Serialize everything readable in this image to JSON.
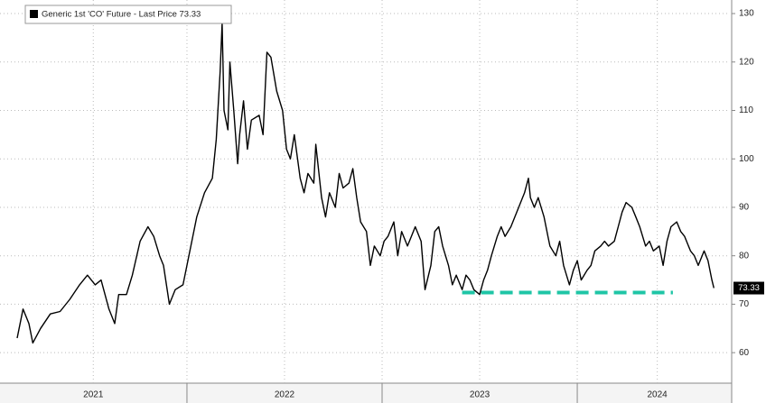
{
  "chart_data": {
    "type": "line",
    "x": [
      2021.13,
      2021.16,
      2021.19,
      2021.21,
      2021.25,
      2021.3,
      2021.35,
      2021.4,
      2021.45,
      2021.49,
      2021.53,
      2021.56,
      2021.6,
      2021.63,
      2021.65,
      2021.69,
      2021.72,
      2021.76,
      2021.8,
      2021.83,
      2021.86,
      2021.88,
      2021.91,
      2021.94,
      2021.98,
      2022.02,
      2022.05,
      2022.09,
      2022.13,
      2022.15,
      2022.17,
      2022.18,
      2022.19,
      2022.21,
      2022.22,
      2022.24,
      2022.26,
      2022.27,
      2022.29,
      2022.31,
      2022.33,
      2022.37,
      2022.39,
      2022.41,
      2022.43,
      2022.46,
      2022.49,
      2022.51,
      2022.53,
      2022.55,
      2022.58,
      2022.6,
      2022.62,
      2022.65,
      2022.66,
      2022.69,
      2022.71,
      2022.73,
      2022.76,
      2022.78,
      2022.8,
      2022.83,
      2022.85,
      2022.87,
      2022.89,
      2022.92,
      2022.94,
      2022.96,
      2022.99,
      2023.01,
      2023.03,
      2023.06,
      2023.08,
      2023.1,
      2023.13,
      2023.15,
      2023.17,
      2023.2,
      2023.22,
      2023.25,
      2023.27,
      2023.29,
      2023.31,
      2023.34,
      2023.36,
      2023.38,
      2023.41,
      2023.43,
      2023.45,
      2023.47,
      2023.5,
      2023.52,
      2023.54,
      2023.56,
      2023.59,
      2023.61,
      2023.63,
      2023.66,
      2023.68,
      2023.7,
      2023.73,
      2023.75,
      2023.76,
      2023.78,
      2023.8,
      2023.83,
      2023.85,
      2023.86,
      2023.89,
      2023.91,
      2023.93,
      2023.96,
      2023.98,
      2024.0,
      2024.02,
      2024.05,
      2024.07,
      2024.09,
      2024.12,
      2024.14,
      2024.16,
      2024.19,
      2024.21,
      2024.23,
      2024.25,
      2024.28,
      2024.3,
      2024.32,
      2024.35,
      2024.37,
      2024.39,
      2024.42,
      2024.44,
      2024.46,
      2024.48,
      2024.51,
      2024.53,
      2024.55,
      2024.58,
      2024.6,
      2024.62,
      2024.65,
      2024.67,
      2024.69,
      2024.7
    ],
    "series": [
      {
        "name": "Generic 1st 'CO' Future - Last Price 73.33",
        "color": "#000000",
        "values": [
          63,
          69,
          66,
          62,
          65,
          68,
          68.5,
          71,
          74,
          76,
          74,
          75,
          69,
          66,
          72,
          72,
          76,
          83,
          86,
          84,
          80,
          78,
          70,
          73,
          74,
          82,
          88,
          93,
          96,
          104,
          118,
          128,
          110,
          106,
          120,
          110,
          99,
          105,
          112,
          102,
          108,
          109,
          105,
          122,
          121,
          114,
          110,
          102,
          100,
          105,
          96,
          93,
          97,
          95,
          103,
          92,
          88,
          93,
          90,
          97,
          94,
          95,
          98,
          92,
          87,
          85,
          78,
          82,
          80,
          83,
          84,
          87,
          80,
          85,
          82,
          84,
          86,
          83,
          73,
          78,
          85,
          86,
          82,
          78,
          74,
          76,
          73,
          76,
          75,
          73,
          72,
          75,
          77,
          80,
          84,
          86,
          84,
          86,
          88,
          90,
          93,
          96,
          92,
          90,
          92,
          88,
          84,
          82,
          80,
          83,
          78,
          74,
          77,
          79,
          75,
          77,
          78,
          81,
          82,
          83,
          82,
          83,
          86,
          89,
          91,
          90,
          88,
          86,
          82,
          83,
          81,
          82,
          78,
          83,
          86,
          87,
          85,
          84,
          81,
          80,
          78,
          81,
          79,
          75,
          73.33
        ]
      }
    ],
    "reference_line": {
      "x": [
        2023.41,
        2024.49
      ],
      "y": 72.4,
      "color": "#1fc5a6"
    },
    "xlim": [
      2021.042,
      2024.782
    ],
    "ylim": [
      53.7,
      132.8
    ],
    "yticks": [
      60,
      70,
      80,
      90,
      100,
      110,
      120,
      130
    ],
    "xticks": [
      {
        "value": 2021.52,
        "label": "2021"
      },
      {
        "value": 2022.5,
        "label": "2022"
      },
      {
        "value": 2023.5,
        "label": "2023"
      },
      {
        "value": 2024.41,
        "label": "2024"
      }
    ],
    "x_separators": [
      2022,
      2023,
      2024
    ],
    "grid": true
  }
}
